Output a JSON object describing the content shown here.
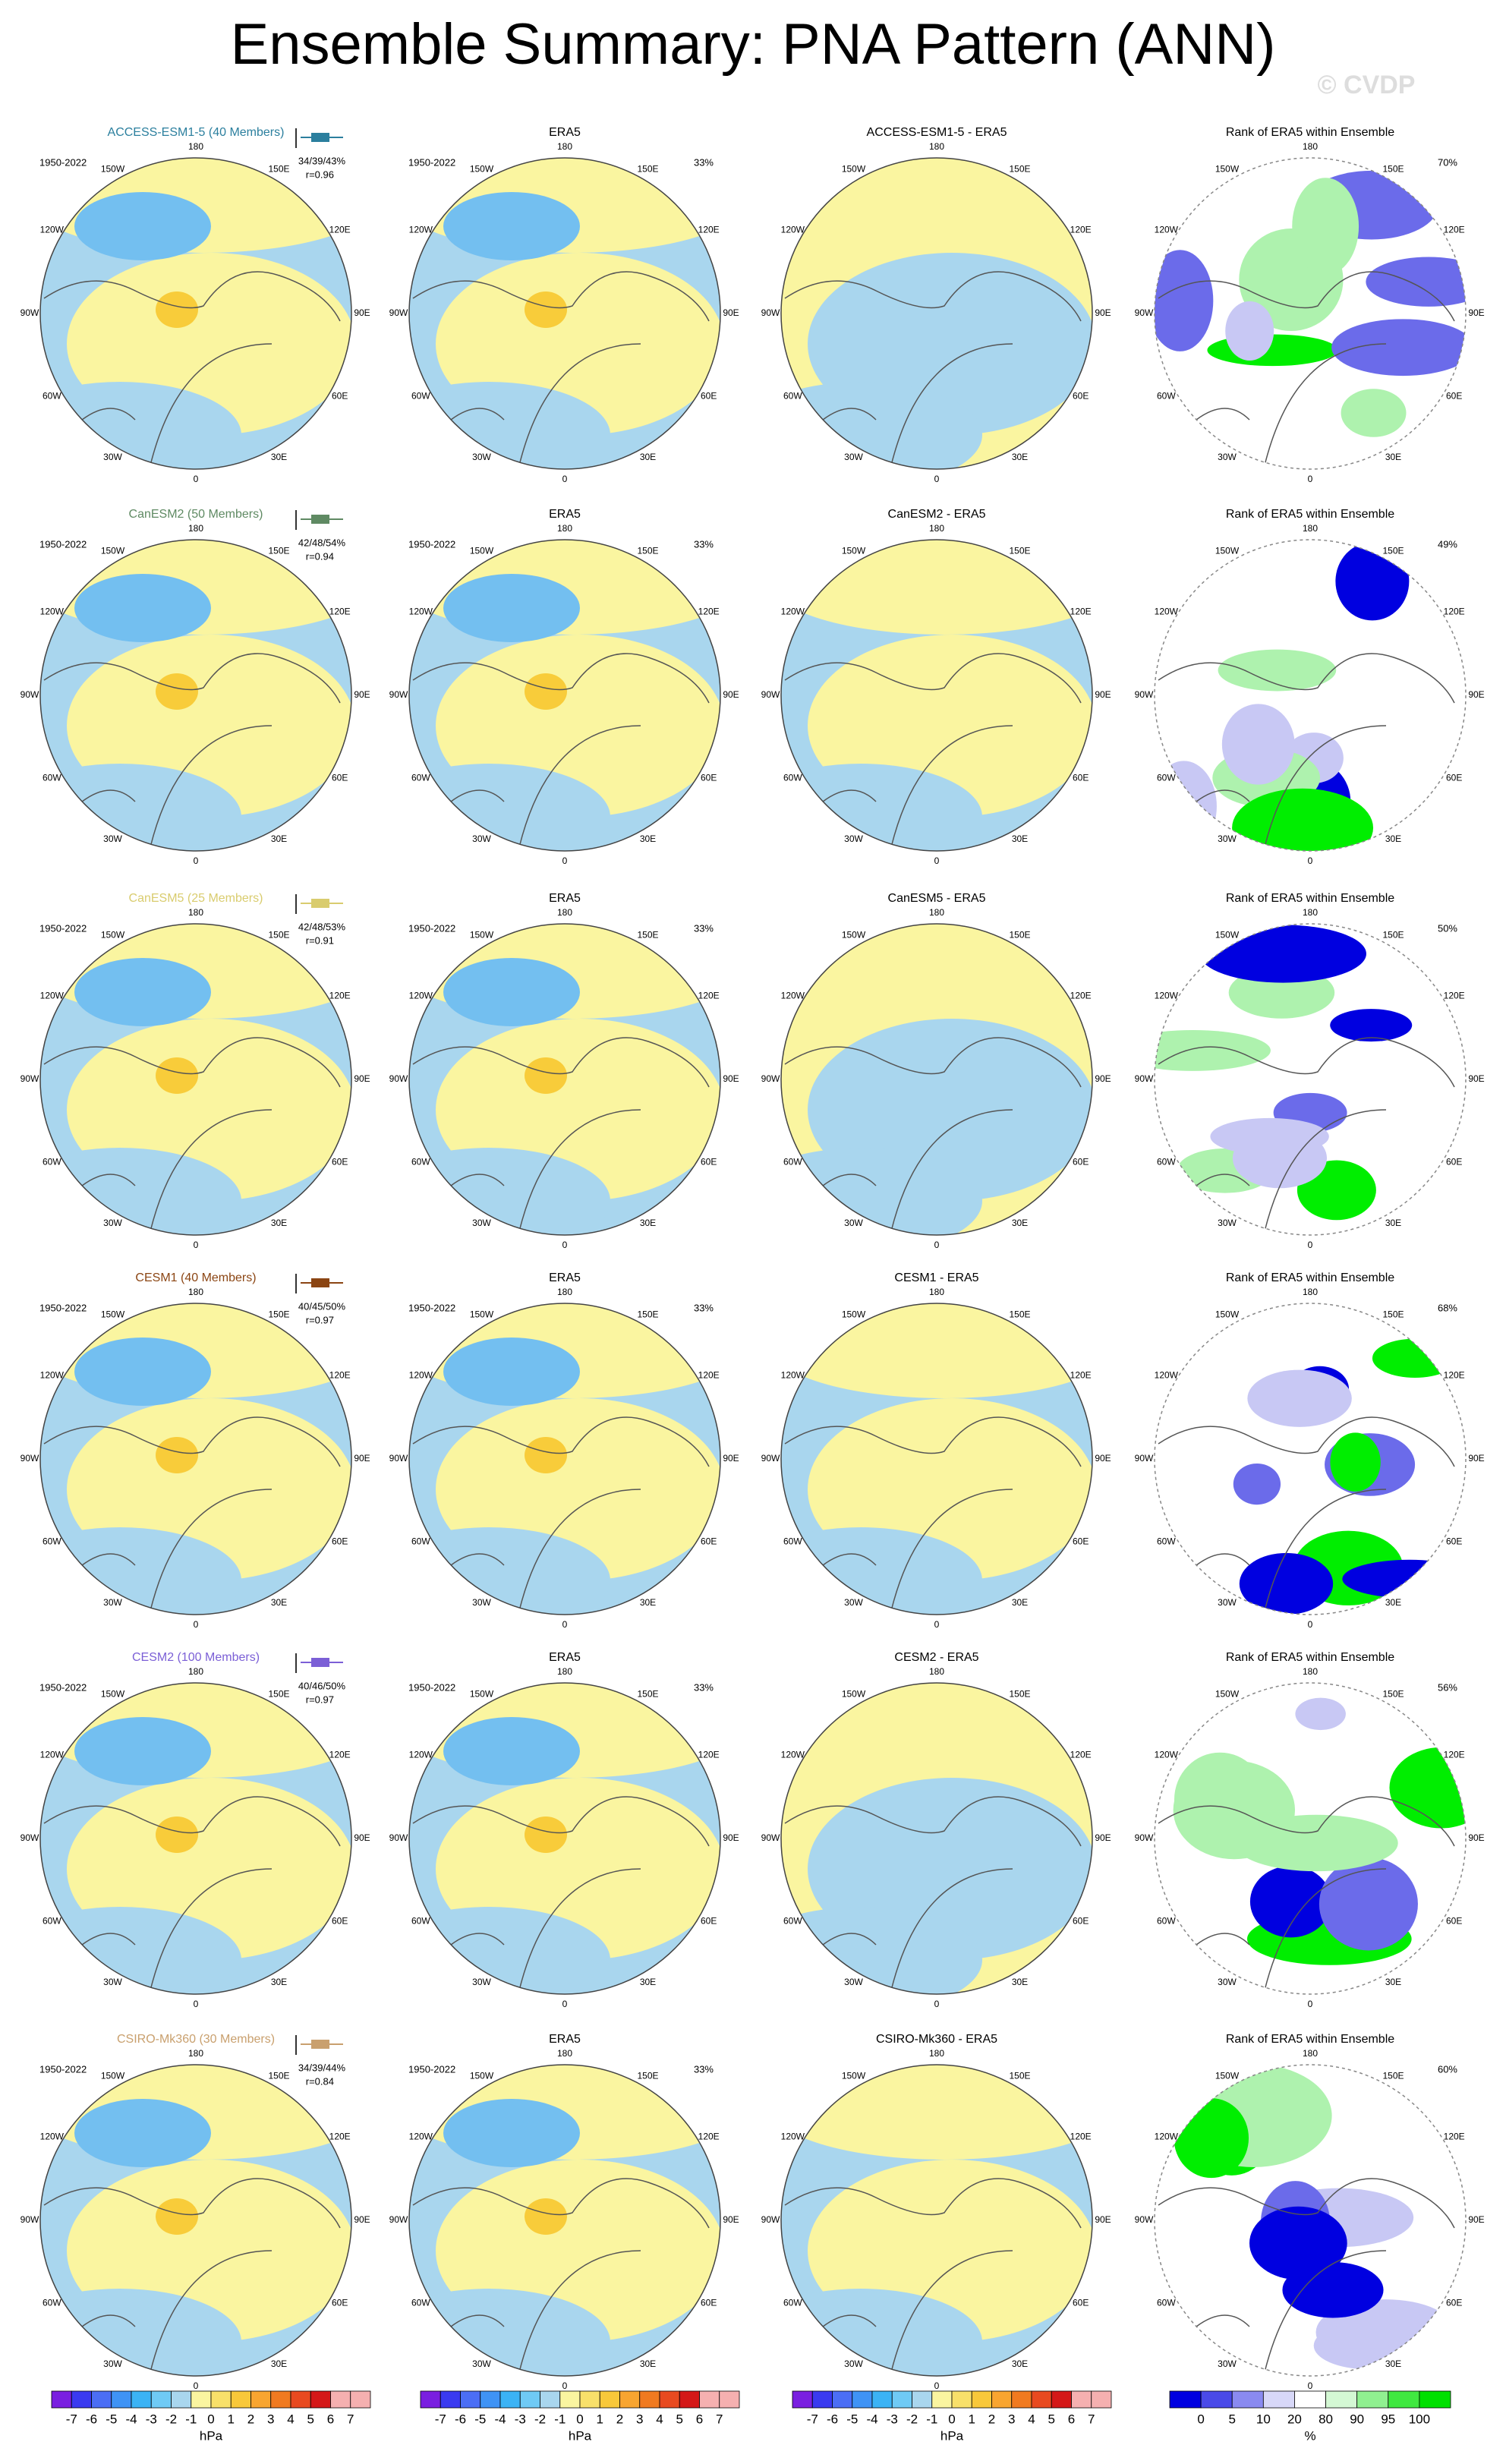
{
  "title": "Ensemble Summary: PNA Pattern (ANN)",
  "watermark": "© CVDP",
  "period": "1950-2022",
  "obs_title": "ERA5",
  "rank_title": "Rank of ERA5 within Ensemble",
  "longitude_labels": [
    "180",
    "150E",
    "120E",
    "90E",
    "60E",
    "30E",
    "0",
    "30W",
    "60W",
    "90W",
    "120W",
    "150W"
  ],
  "rows": [
    {
      "model": "ACCESS-ESM1-5 (40 Members)",
      "color": "#2b7f9e",
      "stats": "34/39/43%",
      "correlation": "r=0.96",
      "obs_pct": "33%",
      "diff_title": "ACCESS-ESM1-5 - ERA5",
      "rank_pct": "70%"
    },
    {
      "model": "CanESM2 (50 Members)",
      "color": "#5f8a63",
      "stats": "42/48/54%",
      "correlation": "r=0.94",
      "obs_pct": "33%",
      "diff_title": "CanESM2 - ERA5",
      "rank_pct": "49%"
    },
    {
      "model": "CanESM5 (25 Members)",
      "color": "#d9cc6e",
      "stats": "42/48/53%",
      "correlation": "r=0.91",
      "obs_pct": "33%",
      "diff_title": "CanESM5 - ERA5",
      "rank_pct": "50%"
    },
    {
      "model": "CESM1 (40 Members)",
      "color": "#8b4513",
      "stats": "40/45/50%",
      "correlation": "r=0.97",
      "obs_pct": "33%",
      "diff_title": "CESM1 - ERA5",
      "rank_pct": "68%"
    },
    {
      "model": "CESM2 (100 Members)",
      "color": "#7b5fd6",
      "stats": "40/46/50%",
      "correlation": "r=0.97",
      "obs_pct": "33%",
      "diff_title": "CESM2 - ERA5",
      "rank_pct": "56%"
    },
    {
      "model": "CSIRO-Mk360 (30 Members)",
      "color": "#c9a06e",
      "stats": "34/39/44%",
      "correlation": "r=0.84",
      "obs_pct": "33%",
      "diff_title": "CSIRO-Mk360 - ERA5",
      "rank_pct": "60%"
    }
  ],
  "anomaly_colorbar": {
    "labels": [
      "-7",
      "-6",
      "-5",
      "-4",
      "-3",
      "-2",
      "-1",
      "0",
      "1",
      "2",
      "3",
      "4",
      "5",
      "6",
      "7"
    ],
    "units": "hPa"
  },
  "rank_colorbar": {
    "labels": [
      "0",
      "5",
      "10",
      "20",
      "80",
      "90",
      "95",
      "100"
    ],
    "units": "%"
  }
}
